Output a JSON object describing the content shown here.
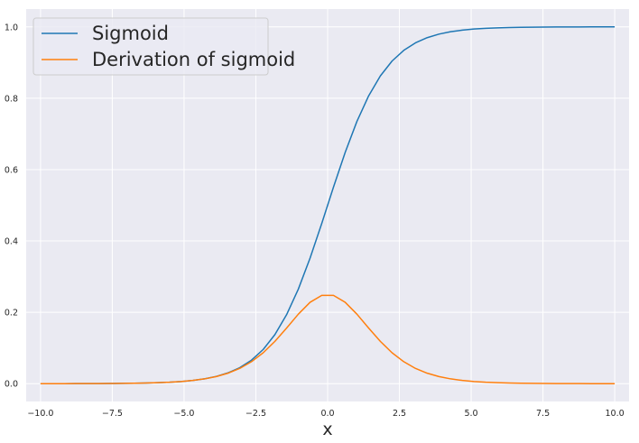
{
  "chart_data": {
    "type": "line",
    "title": "",
    "xlabel": "x",
    "ylabel": "",
    "xlim": [
      -10.5,
      10.5
    ],
    "ylim": [
      -0.05,
      1.05
    ],
    "xticks": [
      -10.0,
      -7.5,
      -5.0,
      -2.5,
      0.0,
      2.5,
      5.0,
      7.5,
      10.0
    ],
    "xtick_labels": [
      "−10.0",
      "−7.5",
      "−5.0",
      "−2.5",
      "0.0",
      "2.5",
      "5.0",
      "7.5",
      "10.0"
    ],
    "yticks": [
      0.0,
      0.2,
      0.4,
      0.6,
      0.8,
      1.0
    ],
    "ytick_labels": [
      "0.0",
      "0.2",
      "0.4",
      "0.6",
      "0.8",
      "1.0"
    ],
    "grid": true,
    "legend_position": "top-left",
    "x": [
      -10.0,
      -9.592,
      -9.184,
      -8.776,
      -8.367,
      -7.959,
      -7.551,
      -7.143,
      -6.735,
      -6.327,
      -5.918,
      -5.51,
      -5.102,
      -4.694,
      -4.286,
      -3.878,
      -3.469,
      -3.061,
      -2.653,
      -2.245,
      -1.837,
      -1.429,
      -1.02,
      -0.612,
      -0.204,
      0.204,
      0.612,
      1.02,
      1.429,
      1.837,
      2.245,
      2.653,
      3.061,
      3.469,
      3.878,
      4.286,
      4.694,
      5.102,
      5.51,
      5.918,
      6.327,
      6.735,
      7.143,
      7.551,
      7.959,
      8.367,
      8.776,
      9.184,
      9.592,
      10.0
    ],
    "series": [
      {
        "name": "Sigmoid",
        "color": "#1f77b4",
        "values": [
          0.0,
          0.0001,
          0.0001,
          0.0002,
          0.0002,
          0.0003,
          0.0005,
          0.0008,
          0.0012,
          0.0018,
          0.0027,
          0.004,
          0.006,
          0.0091,
          0.0136,
          0.0203,
          0.0302,
          0.0447,
          0.0658,
          0.0957,
          0.1374,
          0.1933,
          0.265,
          0.3517,
          0.4492,
          0.5508,
          0.6483,
          0.735,
          0.8067,
          0.8626,
          0.9043,
          0.9342,
          0.9553,
          0.9698,
          0.9797,
          0.9864,
          0.9909,
          0.994,
          0.996,
          0.9973,
          0.9982,
          0.9988,
          0.9992,
          0.9995,
          0.9997,
          0.9998,
          0.9998,
          0.9999,
          0.9999,
          1.0
        ]
      },
      {
        "name": "Derivation of sigmoid",
        "color": "#ff7f0e",
        "values": [
          0.0,
          0.0001,
          0.0001,
          0.0002,
          0.0002,
          0.0003,
          0.0005,
          0.0008,
          0.0012,
          0.0018,
          0.0027,
          0.004,
          0.006,
          0.009,
          0.0134,
          0.0199,
          0.0293,
          0.0427,
          0.0615,
          0.0866,
          0.1185,
          0.1559,
          0.1948,
          0.228,
          0.2474,
          0.2474,
          0.228,
          0.1948,
          0.1559,
          0.1185,
          0.0866,
          0.0615,
          0.0427,
          0.0293,
          0.0199,
          0.0134,
          0.009,
          0.006,
          0.004,
          0.0027,
          0.0018,
          0.0012,
          0.0008,
          0.0005,
          0.0003,
          0.0002,
          0.0002,
          0.0001,
          0.0001,
          0.0
        ]
      }
    ]
  }
}
